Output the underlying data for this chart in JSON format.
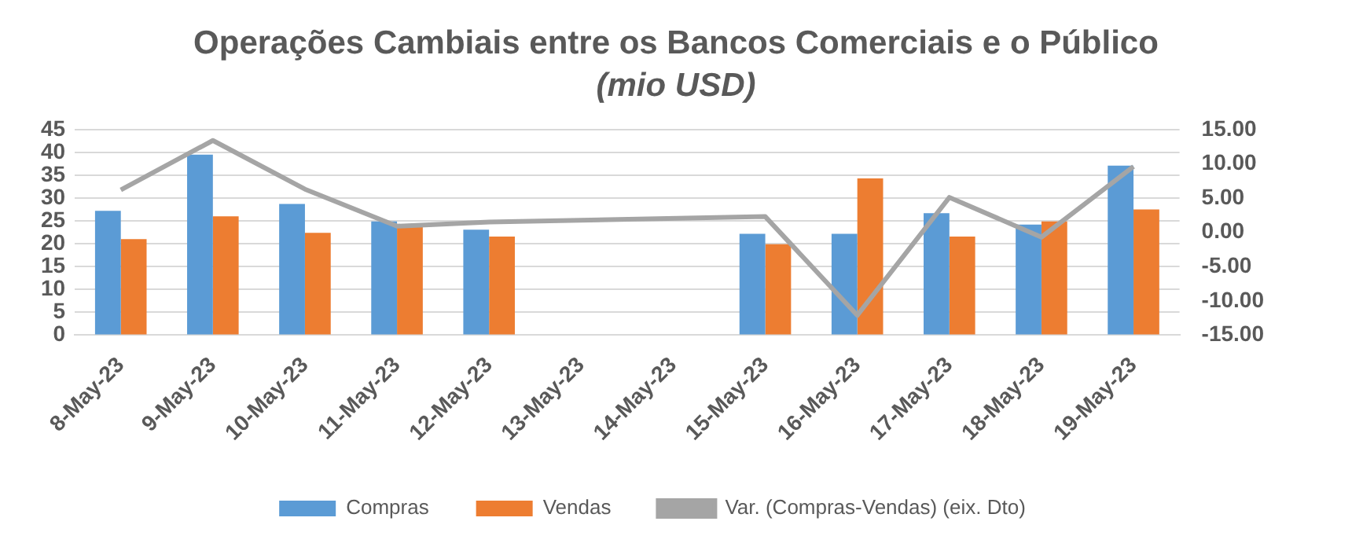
{
  "chart_data": {
    "type": "bar",
    "title": "Operações Cambiais entre os Bancos Comerciais e o Público",
    "subtitle": "(mio USD)",
    "categories": [
      "8-May-23",
      "9-May-23",
      "10-May-23",
      "11-May-23",
      "12-May-23",
      "13-May-23",
      "14-May-23",
      "15-May-23",
      "16-May-23",
      "17-May-23",
      "18-May-23",
      "19-May-23"
    ],
    "series": [
      {
        "name": "Compras",
        "color": "#5b9bd5",
        "values": [
          27.2,
          39.5,
          28.7,
          24.9,
          23.1,
          null,
          null,
          22.2,
          22.2,
          26.7,
          24.2,
          37.1
        ]
      },
      {
        "name": "Vendas",
        "color": "#ed7d31",
        "values": [
          21.0,
          26.0,
          22.4,
          24.0,
          21.6,
          null,
          null,
          19.9,
          34.3,
          21.6,
          24.9,
          27.5
        ]
      },
      {
        "name": "Var. (Compras-Vendas) (eix. Dto)",
        "type": "line",
        "axis": "y2",
        "color": "#a5a5a5",
        "values": [
          6.2,
          13.4,
          6.3,
          0.9,
          1.5,
          null,
          null,
          2.3,
          -12.1,
          5.1,
          -0.7,
          9.6
        ]
      }
    ],
    "ylim": [
      0,
      45
    ],
    "yticks": [
      0,
      5,
      10,
      15,
      20,
      25,
      30,
      35,
      40,
      45
    ],
    "y2lim": [
      -15,
      15
    ],
    "y2ticks": [
      {
        "value": -15,
        "label": "-15.00"
      },
      {
        "value": -10,
        "label": "-10.00"
      },
      {
        "value": -5,
        "label": "-5.00"
      },
      {
        "value": 0,
        "label": "0.00"
      },
      {
        "value": 5,
        "label": "5.00"
      },
      {
        "value": 10,
        "label": "10.00"
      },
      {
        "value": 15,
        "label": "15.00"
      }
    ],
    "grid": "y",
    "legend": "bottom",
    "marker": "none"
  }
}
